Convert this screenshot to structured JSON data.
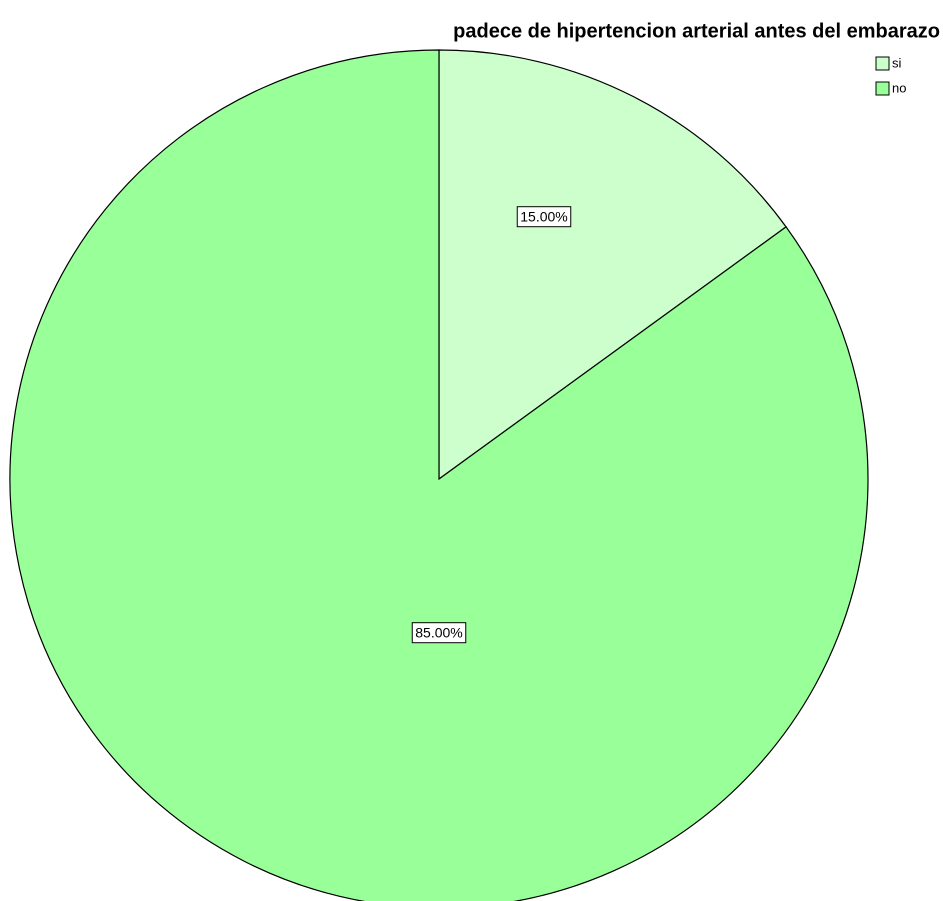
{
  "chart_data": {
    "type": "pie",
    "title": "padece de hipertencion arterial antes del embarazo",
    "categories": [
      "si",
      "no"
    ],
    "values": [
      15,
      85
    ],
    "value_labels": [
      "15.00%",
      "85.00%"
    ],
    "colors": [
      "#ccffcc",
      "#99ff99"
    ],
    "legend": "top-right"
  }
}
